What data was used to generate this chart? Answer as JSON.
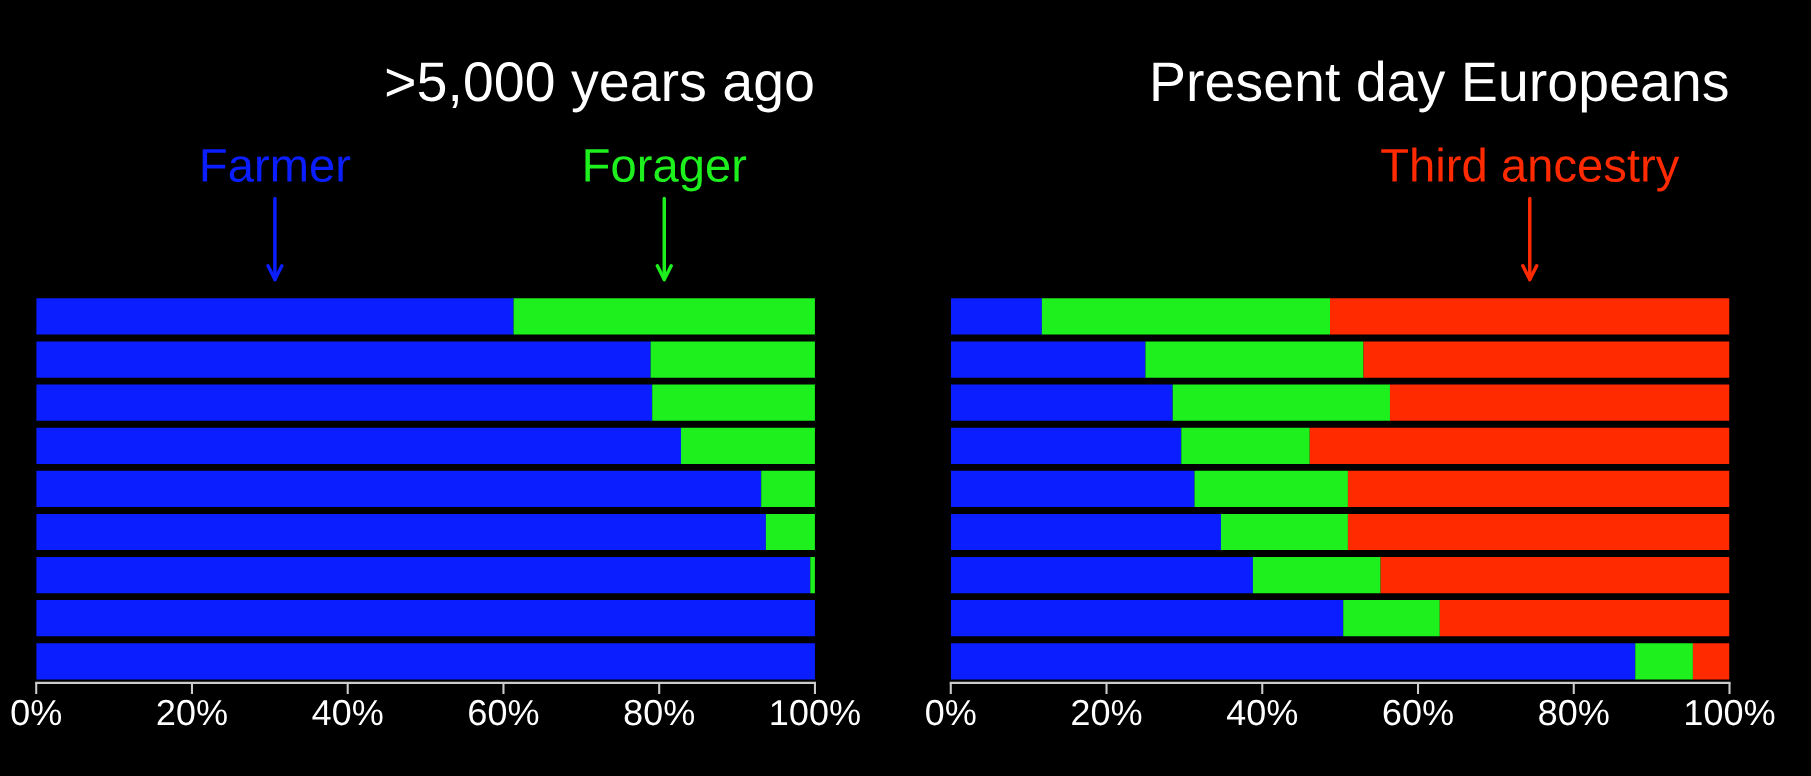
{
  "chart_data": [
    {
      "type": "bar",
      "orientation": "horizontal",
      "stacked": true,
      "title": ">5,000 years ago",
      "categories": [
        null,
        null,
        null,
        null,
        null,
        null,
        null,
        null,
        null
      ],
      "series": [
        {
          "name": "Farmer",
          "color": "#0a1eff",
          "values": [
            61.3,
            78.9,
            79.1,
            82.8,
            93.1,
            93.7,
            99.4,
            100,
            100
          ]
        },
        {
          "name": "Forager",
          "color": "#1ef01e",
          "values": [
            38.7,
            21.1,
            20.9,
            17.2,
            6.9,
            6.3,
            0.6,
            0,
            0
          ]
        }
      ],
      "xlim": [
        0,
        100
      ],
      "xticks": [
        {
          "value": 0,
          "label": "0%"
        },
        {
          "value": 20,
          "label": "20%"
        },
        {
          "value": 40,
          "label": "40%"
        },
        {
          "value": 60,
          "label": "60%"
        },
        {
          "value": 80,
          "label": "80%"
        },
        {
          "value": 100,
          "label": "100%"
        }
      ],
      "tick_labels": "x",
      "grid": false,
      "legend": false
    },
    {
      "type": "bar",
      "orientation": "horizontal",
      "stacked": true,
      "title": "Present day Europeans",
      "categories": [
        null,
        null,
        null,
        null,
        null,
        null,
        null,
        null,
        null
      ],
      "series": [
        {
          "color": "#0a1eff",
          "values": [
            11.7,
            25.0,
            28.5,
            29.6,
            31.3,
            34.7,
            38.8,
            50.4,
            87.9
          ]
        },
        {
          "color": "#1ef01e",
          "values": [
            37.0,
            28.0,
            27.9,
            16.5,
            19.7,
            16.3,
            16.4,
            12.4,
            7.4
          ]
        },
        {
          "name": "Third ancestry",
          "color": "#ff2a00",
          "values": [
            51.3,
            47.0,
            43.6,
            53.9,
            49.0,
            49.0,
            44.8,
            37.2,
            4.7
          ]
        }
      ],
      "xlim": [
        0,
        100
      ],
      "xticks": [
        {
          "value": 0,
          "label": "0%"
        },
        {
          "value": 20,
          "label": "20%"
        },
        {
          "value": 40,
          "label": "40%"
        },
        {
          "value": 60,
          "label": "60%"
        },
        {
          "value": 80,
          "label": "80%"
        },
        {
          "value": 100,
          "label": "100%"
        }
      ],
      "tick_labels": "x",
      "grid": false,
      "legend": false
    }
  ]
}
